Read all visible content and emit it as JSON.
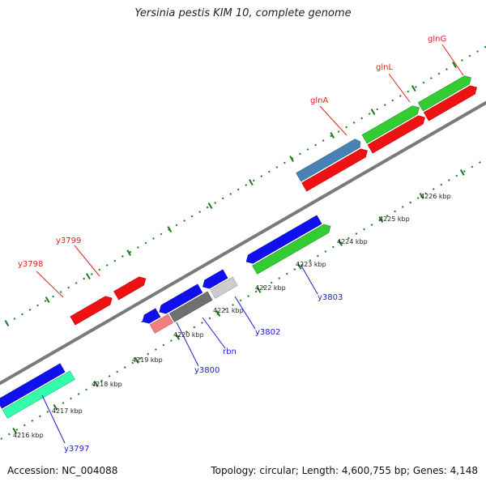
{
  "title": "Yersinia pestis KIM 10, complete genome",
  "footer": {
    "accession": "Accession: NC_004088",
    "summary": "Topology: circular; Length: 4,600,755 bp; Genes: 4,148"
  },
  "colors": {
    "backbone": "#8c8c8c",
    "tick": "#1e7a1e",
    "red_label": "#e02020",
    "blue_label": "#1c1cc8"
  },
  "ticks": [
    {
      "label": "4216 kbp"
    },
    {
      "label": "4217 kbp"
    },
    {
      "label": "4218 kbp"
    },
    {
      "label": "4219 kbp"
    },
    {
      "label": "4220 kbp"
    },
    {
      "label": "4221 kbp"
    },
    {
      "label": "4222 kbp"
    },
    {
      "label": "4223 kbp"
    },
    {
      "label": "4224 kbp"
    },
    {
      "label": "4225 kbp"
    },
    {
      "label": "4226 kbp"
    }
  ],
  "gene_labels_top": [
    {
      "label": "y3798"
    },
    {
      "label": "y3799"
    },
    {
      "label": "glnA"
    },
    {
      "label": "glnL"
    },
    {
      "label": "glnG"
    }
  ],
  "gene_labels_bottom": [
    {
      "label": "y3797"
    },
    {
      "label": "y3800"
    },
    {
      "label": "rbn"
    },
    {
      "label": "y3802"
    },
    {
      "label": "y3803"
    }
  ]
}
